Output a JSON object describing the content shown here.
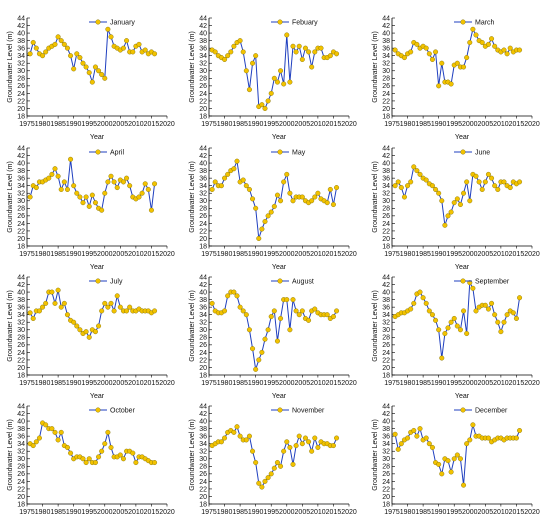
{
  "figure": {
    "ylabel": "Groundwater Level (m)",
    "xlabel": "Year",
    "colors": {
      "line": "#1f3fbf",
      "marker_fill": "#f2c200",
      "marker_edge": "#7a6a00",
      "axis": "#000000"
    },
    "xlim": [
      1975,
      2020
    ],
    "ylim": [
      18,
      44
    ],
    "xticks": [
      1975,
      1980,
      1985,
      1990,
      1995,
      2000,
      2005,
      2010,
      2015,
      2020
    ],
    "yticks": [
      18,
      20,
      22,
      24,
      26,
      28,
      30,
      32,
      34,
      36,
      38,
      40,
      42,
      44
    ]
  },
  "chart_data": [
    {
      "type": "line",
      "series": [
        {
          "name": "January",
          "x": [
            1976,
            1977,
            1978,
            1979,
            1980,
            1981,
            1982,
            1983,
            1984,
            1985,
            1986,
            1987,
            1988,
            1989,
            1990,
            1991,
            1992,
            1993,
            1994,
            1995,
            1996,
            1997,
            1998,
            1999,
            2000,
            2001,
            2002,
            2003,
            2004,
            2005,
            2006,
            2007,
            2008,
            2009,
            2010,
            2011,
            2012,
            2013,
            2014,
            2015,
            2016
          ],
          "y": [
            34.5,
            37.5,
            36,
            34.5,
            34,
            35,
            36,
            36.5,
            37,
            39,
            38,
            37,
            36,
            34,
            30.5,
            34.5,
            33.5,
            32,
            31,
            29.5,
            27,
            31,
            30,
            29,
            28,
            41,
            39,
            36.5,
            36,
            35.5,
            36,
            38,
            35,
            35,
            36.5,
            37,
            35,
            35.5,
            34.5,
            35,
            34.5
          ]
        }
      ]
    },
    {
      "type": "line",
      "series": [
        {
          "name": "Febuary",
          "x": [
            1976,
            1977,
            1978,
            1979,
            1980,
            1981,
            1982,
            1983,
            1984,
            1985,
            1986,
            1987,
            1988,
            1989,
            1990,
            1991,
            1992,
            1993,
            1994,
            1995,
            1996,
            1997,
            1998,
            1999,
            2000,
            2001,
            2002,
            2003,
            2004,
            2005,
            2006,
            2007,
            2008,
            2009,
            2010,
            2011,
            2012,
            2013,
            2014,
            2015,
            2016
          ],
          "y": [
            35.5,
            35,
            34,
            33.5,
            33,
            34,
            35,
            36.5,
            37.5,
            38,
            35,
            30,
            25,
            32,
            34,
            20.5,
            21,
            20,
            22,
            24,
            28,
            27,
            30,
            26.5,
            39.5,
            27,
            36.5,
            35,
            36.5,
            33,
            36,
            35,
            31,
            35,
            36,
            36,
            33.5,
            33.5,
            34,
            35,
            34.5
          ]
        }
      ]
    },
    {
      "type": "line",
      "series": [
        {
          "name": "March",
          "x": [
            1976,
            1977,
            1978,
            1979,
            1980,
            1981,
            1982,
            1983,
            1984,
            1985,
            1986,
            1987,
            1988,
            1989,
            1990,
            1991,
            1992,
            1993,
            1994,
            1995,
            1996,
            1997,
            1998,
            1999,
            2000,
            2001,
            2002,
            2003,
            2004,
            2005,
            2006,
            2007,
            2008,
            2009,
            2010,
            2011,
            2012,
            2013,
            2014,
            2015,
            2016
          ],
          "y": [
            35.5,
            34.5,
            34,
            33.5,
            34.5,
            35,
            37.5,
            37,
            36,
            36.5,
            36,
            34.5,
            33,
            35,
            26,
            32,
            27,
            27,
            26.5,
            31.5,
            32,
            31,
            31,
            33.5,
            37.5,
            41,
            39.5,
            38,
            37.5,
            36.5,
            37,
            38.5,
            36.5,
            35.5,
            35,
            35.5,
            34.5,
            36,
            35,
            35.5,
            35.5
          ]
        }
      ]
    },
    {
      "type": "line",
      "series": [
        {
          "name": "April",
          "x": [
            1976,
            1977,
            1978,
            1979,
            1980,
            1981,
            1982,
            1983,
            1984,
            1985,
            1986,
            1987,
            1988,
            1989,
            1990,
            1991,
            1992,
            1993,
            1994,
            1995,
            1996,
            1997,
            1998,
            1999,
            2000,
            2001,
            2002,
            2003,
            2004,
            2005,
            2006,
            2007,
            2008,
            2009,
            2010,
            2011,
            2012,
            2013,
            2014,
            2015,
            2016
          ],
          "y": [
            31,
            34,
            33.5,
            35,
            35,
            35.5,
            36,
            37,
            38.5,
            36.5,
            33,
            35,
            33,
            41,
            34,
            32,
            31,
            29.5,
            31,
            28.5,
            31.5,
            29.5,
            28,
            27.5,
            32,
            35,
            36.5,
            35,
            33.5,
            35.5,
            35,
            36,
            34,
            31,
            30.5,
            31,
            32,
            34.5,
            33,
            27.5,
            34.5
          ]
        }
      ]
    },
    {
      "type": "line",
      "series": [
        {
          "name": "May",
          "x": [
            1976,
            1977,
            1978,
            1979,
            1980,
            1981,
            1982,
            1983,
            1984,
            1985,
            1986,
            1987,
            1988,
            1989,
            1990,
            1991,
            1992,
            1993,
            1994,
            1995,
            1996,
            1997,
            1998,
            1999,
            2000,
            2001,
            2002,
            2003,
            2004,
            2005,
            2006,
            2007,
            2008,
            2009,
            2010,
            2011,
            2012,
            2013,
            2014,
            2015,
            2016
          ],
          "y": [
            33,
            35,
            34,
            34,
            36,
            37,
            38,
            38.5,
            40.5,
            35,
            35.5,
            34,
            33,
            30.5,
            28,
            20,
            22.5,
            24.5,
            26,
            27,
            28.5,
            31.5,
            30,
            35,
            37,
            32,
            30,
            31,
            31,
            31,
            30,
            29.5,
            30,
            31,
            32,
            30.5,
            30,
            29.5,
            33,
            29,
            33.5
          ]
        }
      ]
    },
    {
      "type": "line",
      "series": [
        {
          "name": "June",
          "x": [
            1976,
            1977,
            1978,
            1979,
            1980,
            1981,
            1982,
            1983,
            1984,
            1985,
            1986,
            1987,
            1988,
            1989,
            1990,
            1991,
            1992,
            1993,
            1994,
            1995,
            1996,
            1997,
            1998,
            1999,
            2000,
            2001,
            2002,
            2003,
            2004,
            2005,
            2006,
            2007,
            2008,
            2009,
            2010,
            2011,
            2012,
            2013,
            2014,
            2015,
            2016
          ],
          "y": [
            34,
            35,
            33.5,
            31,
            34,
            35,
            39,
            38,
            37,
            36,
            35.5,
            34.5,
            34,
            33,
            32,
            30,
            23.5,
            26,
            27,
            29.5,
            30.5,
            29,
            32,
            35,
            30,
            37,
            36.5,
            35,
            33,
            35,
            37,
            36,
            34,
            33,
            35,
            35,
            34,
            33.5,
            35,
            34.5,
            35
          ]
        }
      ]
    },
    {
      "type": "line",
      "series": [
        {
          "name": "July",
          "x": [
            1976,
            1977,
            1978,
            1979,
            1980,
            1981,
            1982,
            1983,
            1984,
            1985,
            1986,
            1987,
            1988,
            1989,
            1990,
            1991,
            1992,
            1993,
            1994,
            1995,
            1996,
            1997,
            1998,
            1999,
            2000,
            2001,
            2002,
            2003,
            2004,
            2005,
            2006,
            2007,
            2008,
            2009,
            2010,
            2011,
            2012,
            2013,
            2014,
            2015,
            2016
          ],
          "y": [
            34.5,
            33,
            35,
            35,
            36,
            37,
            40,
            40,
            37,
            40.5,
            36,
            37,
            34,
            32.5,
            32,
            31,
            30,
            29,
            29.5,
            28,
            30,
            29.5,
            31,
            35,
            37,
            36,
            37,
            35,
            39,
            36,
            35,
            35,
            36,
            35,
            35,
            35.5,
            35,
            35,
            35,
            34.5,
            35
          ]
        }
      ]
    },
    {
      "type": "line",
      "series": [
        {
          "name": "August",
          "x": [
            1976,
            1977,
            1978,
            1979,
            1980,
            1981,
            1982,
            1983,
            1984,
            1985,
            1986,
            1987,
            1988,
            1989,
            1990,
            1991,
            1992,
            1993,
            1994,
            1995,
            1996,
            1997,
            1998,
            1999,
            2000,
            2001,
            2002,
            2003,
            2004,
            2005,
            2006,
            2007,
            2008,
            2009,
            2010,
            2011,
            2012,
            2013,
            2014,
            2015,
            2016
          ],
          "y": [
            37,
            35,
            34.5,
            34.5,
            35,
            39,
            40,
            40,
            39,
            36,
            35,
            34,
            30,
            25,
            19.5,
            22,
            24,
            27.5,
            30,
            33.5,
            35,
            27,
            33,
            38,
            38,
            30,
            38,
            35,
            34,
            35,
            33,
            32.5,
            35,
            35.5,
            34.5,
            34,
            34,
            34,
            33,
            33.5,
            35
          ]
        }
      ]
    },
    {
      "type": "line",
      "series": [
        {
          "name": "September",
          "x": [
            1976,
            1977,
            1978,
            1979,
            1980,
            1981,
            1982,
            1983,
            1984,
            1985,
            1986,
            1987,
            1988,
            1989,
            1990,
            1991,
            1992,
            1993,
            1994,
            1995,
            1996,
            1997,
            1998,
            1999,
            2000,
            2001,
            2002,
            2003,
            2004,
            2005,
            2006,
            2007,
            2008,
            2009,
            2010,
            2011,
            2012,
            2013,
            2014,
            2015,
            2016
          ],
          "y": [
            33.5,
            34,
            34.5,
            34.5,
            35,
            35.5,
            37,
            39.5,
            40,
            38.5,
            37,
            35,
            34,
            32.5,
            30,
            22.5,
            29,
            30.5,
            32,
            33,
            31,
            30,
            35,
            29,
            42.5,
            41,
            35,
            36,
            36.5,
            36.5,
            35.5,
            37,
            34,
            32,
            29.5,
            32,
            34,
            35,
            34.5,
            33,
            38.5
          ]
        }
      ]
    },
    {
      "type": "line",
      "series": [
        {
          "name": "October",
          "x": [
            1976,
            1977,
            1978,
            1979,
            1980,
            1981,
            1982,
            1983,
            1984,
            1985,
            1986,
            1987,
            1988,
            1989,
            1990,
            1991,
            1992,
            1993,
            1994,
            1995,
            1996,
            1997,
            1998,
            1999,
            2000,
            2001,
            2002,
            2003,
            2004,
            2005,
            2006,
            2007,
            2008,
            2009,
            2010,
            2011,
            2012,
            2013,
            2014,
            2015,
            2016
          ],
          "y": [
            34,
            33.5,
            34.5,
            35.5,
            39.5,
            39,
            38,
            38,
            37,
            35,
            37,
            33.5,
            33,
            31.5,
            30,
            30.5,
            30.5,
            30,
            29,
            30,
            29,
            29,
            30.5,
            32,
            34,
            37,
            33,
            30.5,
            30.5,
            31,
            30,
            32,
            32,
            31.5,
            29,
            30.5,
            30.5,
            30,
            29.5,
            29,
            29
          ]
        }
      ]
    },
    {
      "type": "line",
      "series": [
        {
          "name": "November",
          "x": [
            1976,
            1977,
            1978,
            1979,
            1980,
            1981,
            1982,
            1983,
            1984,
            1985,
            1986,
            1987,
            1988,
            1989,
            1990,
            1991,
            1992,
            1993,
            1994,
            1995,
            1996,
            1997,
            1998,
            1999,
            2000,
            2001,
            2002,
            2003,
            2004,
            2005,
            2006,
            2007,
            2008,
            2009,
            2010,
            2011,
            2012,
            2013,
            2014,
            2015,
            2016
          ],
          "y": [
            33.5,
            34,
            34.5,
            34.5,
            35.5,
            37,
            37.5,
            37,
            38.5,
            36,
            35,
            35,
            36,
            32,
            29,
            23.5,
            22.5,
            24,
            25,
            26,
            27.5,
            29,
            28,
            32,
            34.5,
            33,
            28.5,
            33.5,
            36,
            34,
            35.5,
            34.5,
            32,
            35.5,
            33,
            34.5,
            34,
            34,
            33.5,
            33.5,
            35.5
          ]
        }
      ]
    },
    {
      "type": "line",
      "series": [
        {
          "name": "December",
          "x": [
            1976,
            1977,
            1978,
            1979,
            1980,
            1981,
            1982,
            1983,
            1984,
            1985,
            1986,
            1987,
            1988,
            1989,
            1990,
            1991,
            1992,
            1993,
            1994,
            1995,
            1996,
            1997,
            1998,
            1999,
            2000,
            2001,
            2002,
            2003,
            2004,
            2005,
            2006,
            2007,
            2008,
            2009,
            2010,
            2011,
            2012,
            2013,
            2014,
            2015,
            2016
          ],
          "y": [
            36.5,
            32.5,
            34,
            35,
            35.5,
            37,
            37.5,
            36,
            38,
            35,
            35.5,
            34,
            33,
            29,
            28.5,
            26,
            30,
            29.5,
            26.5,
            30,
            31,
            30,
            23,
            34,
            35,
            39,
            36,
            36,
            35.5,
            35.5,
            35.5,
            34.5,
            35,
            35.5,
            35.5,
            35,
            35.5,
            35.5,
            35.5,
            35.5,
            37.5
          ]
        }
      ]
    }
  ]
}
